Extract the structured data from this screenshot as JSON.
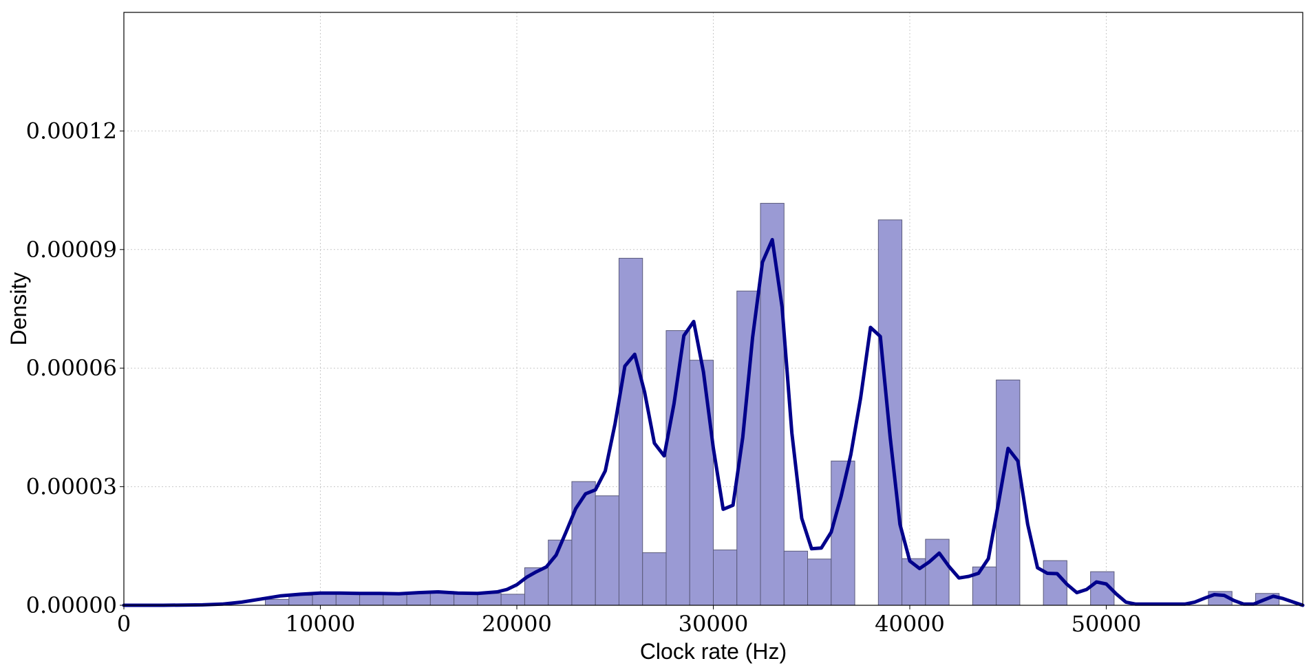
{
  "chart_data": {
    "type": "bar",
    "subtype": "histogram-with-density-curve",
    "xlabel": "Clock rate (Hz)",
    "ylabel": "Density",
    "xlim": [
      0,
      60000
    ],
    "ylim": [
      0,
      0.00015
    ],
    "x_ticks": [
      0,
      10000,
      20000,
      30000,
      40000,
      50000
    ],
    "x_tick_labels": [
      "0",
      "10000",
      "20000",
      "30000",
      "40000",
      "50000"
    ],
    "y_ticks": [
      0,
      3e-05,
      6e-05,
      9e-05,
      0.00012
    ],
    "y_tick_labels": [
      "0.00000",
      "0.00003",
      "0.00006",
      "0.00009",
      "0.00012"
    ],
    "grid": true,
    "bar_color": "#9a9ad4",
    "line_color": "#00008b",
    "bin_width": 1200,
    "bins": [
      {
        "x0": 7200,
        "density": 1.5e-06
      },
      {
        "x0": 8400,
        "density": 2.5e-06
      },
      {
        "x0": 9600,
        "density": 3e-06
      },
      {
        "x0": 10800,
        "density": 3e-06
      },
      {
        "x0": 12000,
        "density": 3e-06
      },
      {
        "x0": 13200,
        "density": 3e-06
      },
      {
        "x0": 14400,
        "density": 3e-06
      },
      {
        "x0": 15600,
        "density": 3.5e-06
      },
      {
        "x0": 16800,
        "density": 3e-06
      },
      {
        "x0": 18000,
        "density": 3e-06
      },
      {
        "x0": 19200,
        "density": 2.8e-06
      },
      {
        "x0": 20400,
        "density": 9.5e-06
      },
      {
        "x0": 21600,
        "density": 1.65e-05
      },
      {
        "x0": 22800,
        "density": 3.13e-05
      },
      {
        "x0": 24000,
        "density": 2.77e-05
      },
      {
        "x0": 25200,
        "density": 8.78e-05
      },
      {
        "x0": 26400,
        "density": 1.33e-05
      },
      {
        "x0": 27600,
        "density": 6.95e-05
      },
      {
        "x0": 28800,
        "density": 6.2e-05
      },
      {
        "x0": 30000,
        "density": 1.4e-05
      },
      {
        "x0": 31200,
        "density": 7.95e-05
      },
      {
        "x0": 32400,
        "density": 0.0001017
      },
      {
        "x0": 33600,
        "density": 1.37e-05
      },
      {
        "x0": 34800,
        "density": 1.17e-05
      },
      {
        "x0": 36000,
        "density": 3.65e-05
      },
      {
        "x0": 38400,
        "density": 9.75e-05
      },
      {
        "x0": 39600,
        "density": 1.18e-05
      },
      {
        "x0": 40800,
        "density": 1.67e-05
      },
      {
        "x0": 43200,
        "density": 9.7e-06
      },
      {
        "x0": 44400,
        "density": 5.7e-05
      },
      {
        "x0": 46800,
        "density": 1.13e-05
      },
      {
        "x0": 49200,
        "density": 8.5e-06
      },
      {
        "x0": 55200,
        "density": 3.5e-06
      },
      {
        "x0": 57600,
        "density": 3e-06
      }
    ],
    "density_curve": {
      "x": [
        0,
        2000,
        4000,
        5000,
        6000,
        7000,
        8000,
        9000,
        10000,
        11000,
        12000,
        13000,
        14000,
        15000,
        16000,
        17000,
        18000,
        19000,
        19500,
        20000,
        20500,
        21000,
        21500,
        22000,
        22500,
        23000,
        23500,
        24000,
        24500,
        25000,
        25500,
        26000,
        26500,
        27000,
        27500,
        28000,
        28500,
        29000,
        29500,
        30000,
        30500,
        31000,
        31500,
        32000,
        32500,
        33000,
        33500,
        34000,
        34500,
        35000,
        35500,
        36000,
        36500,
        37000,
        37500,
        38000,
        38500,
        39000,
        39500,
        40000,
        40500,
        41000,
        41500,
        42000,
        42500,
        43000,
        43500,
        44000,
        44500,
        45000,
        45500,
        46000,
        46500,
        47000,
        47500,
        48000,
        48500,
        49000,
        49500,
        50000,
        50500,
        51000,
        51500,
        52000,
        53000,
        54000,
        54500,
        55000,
        55500,
        56000,
        56500,
        57000,
        57500,
        58000,
        58500,
        59000,
        60000
      ],
      "y": [
        0,
        0,
        1e-07,
        3e-07,
        8e-07,
        1.6e-06,
        2.4e-06,
        2.8e-06,
        3.1e-06,
        3.1e-06,
        3e-06,
        3e-06,
        2.9e-06,
        3.2e-06,
        3.4e-06,
        3.1e-06,
        3e-06,
        3.4e-06,
        4e-06,
        5.2e-06,
        7.1e-06,
        8.5e-06,
        9.7e-06,
        1.27e-05,
        1.85e-05,
        2.45e-05,
        2.82e-05,
        2.92e-05,
        3.4e-05,
        4.6e-05,
        6.05e-05,
        6.35e-05,
        5.4e-05,
        4.1e-05,
        3.78e-05,
        5.1e-05,
        6.82e-05,
        7.18e-05,
        5.9e-05,
        3.98e-05,
        2.43e-05,
        2.53e-05,
        4.25e-05,
        6.78e-05,
        8.68e-05,
        9.25e-05,
        7.55e-05,
        4.35e-05,
        2.2e-05,
        1.43e-05,
        1.45e-05,
        1.85e-05,
        2.75e-05,
        3.82e-05,
        5.25e-05,
        7.03e-05,
        6.8e-05,
        4.25e-05,
        2.05e-05,
        1.12e-05,
        9.3e-06,
        1.1e-05,
        1.32e-05,
        9.8e-06,
        6.9e-06,
        7.3e-06,
        8.1e-06,
        1.18e-05,
        2.55e-05,
        3.97e-05,
        3.65e-05,
        2.05e-05,
        9.5e-06,
        8.1e-06,
        8e-06,
        5.3e-06,
        3.2e-06,
        4e-06,
        5.9e-06,
        5.4e-06,
        2.9e-06,
        8e-07,
        3e-07,
        3e-07,
        3e-07,
        3e-07,
        8e-07,
        1.8e-06,
        2.7e-06,
        2.5e-06,
        1.2e-06,
        3e-07,
        3e-07,
        1.3e-06,
        2.3e-06,
        1.7e-06,
        0
      ]
    }
  }
}
